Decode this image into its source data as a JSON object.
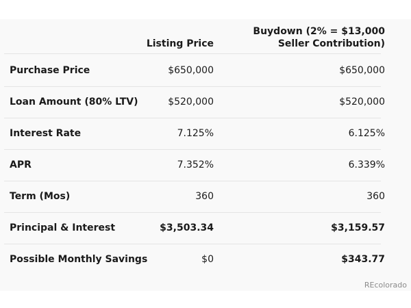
{
  "table": {
    "header": [
      "Listing Price",
      "Buydown (2% = $13,000 Seller Contribution)"
    ],
    "rows": [
      [
        "Purchase Price",
        "$650,000",
        "$650,000"
      ],
      [
        "Loan Amount (80% LTV)",
        "$520,000",
        "$520,000"
      ],
      [
        "Interest Rate",
        "7.125%",
        "6.125%"
      ],
      [
        "APR",
        "7.352%",
        "6.339%"
      ],
      [
        "Term (Mos)",
        "360",
        "360"
      ],
      [
        "Principal & Interest",
        "$3,503.34",
        "$3,159.57"
      ],
      [
        "Possible Monthly Savings",
        "$0",
        "$343.77"
      ]
    ]
  },
  "watermark": "REcolorado"
}
